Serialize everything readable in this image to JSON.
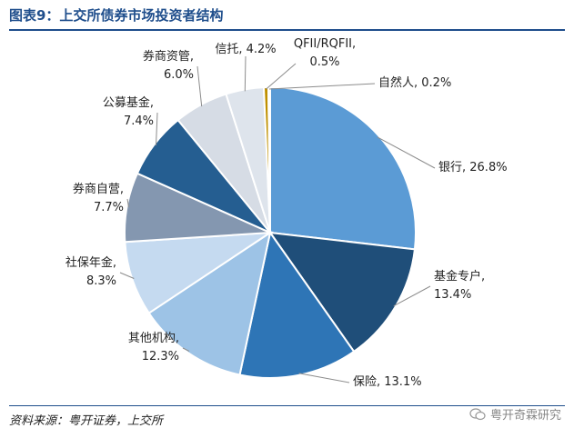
{
  "figure": {
    "title": "图表9：上交所债券市场投资者结构",
    "source": "资料来源：粤开证券，上交所",
    "watermark": "粤开奇霖研究"
  },
  "chart_data": {
    "type": "pie",
    "title": "图表9：上交所债券市场投资者结构",
    "unit": "%",
    "slices": [
      {
        "name": "银行",
        "value": 26.8,
        "label": "银行, 26.8%",
        "color": "#5b9bd5"
      },
      {
        "name": "基金专户",
        "value": 13.4,
        "label": "基金专户,\n13.4%",
        "color": "#1f4e79"
      },
      {
        "name": "保险",
        "value": 13.1,
        "label": "保险, 13.1%",
        "color": "#2e75b6"
      },
      {
        "name": "其他机构",
        "value": 12.3,
        "label": "其他机构,\n12.3%",
        "color": "#9dc3e6"
      },
      {
        "name": "社保年金",
        "value": 8.3,
        "label": "社保年金,\n8.3%",
        "color": "#c5daf0"
      },
      {
        "name": "券商自营",
        "value": 7.7,
        "label": "券商自营,\n7.7%",
        "color": "#8497b0"
      },
      {
        "name": "公募基金",
        "value": 7.4,
        "label": "公募基金,\n7.4%",
        "color": "#255e91"
      },
      {
        "name": "券商资管",
        "value": 6.0,
        "label": "券商资管,\n6.0%",
        "color": "#d6dce5"
      },
      {
        "name": "信托",
        "value": 4.2,
        "label": "信托, 4.2%",
        "color": "#dee4ec"
      },
      {
        "name": "QFII/RQFII",
        "value": 0.5,
        "label": "QFII/RQFII,\n0.5%",
        "color": "#bf9000"
      },
      {
        "name": "自然人",
        "value": 0.2,
        "label": "自然人, 0.2%",
        "color": "#1f3864"
      }
    ]
  }
}
